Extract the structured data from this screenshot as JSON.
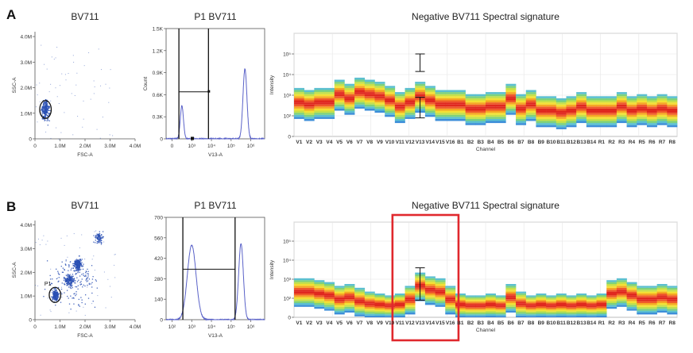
{
  "panel_labels": [
    "A",
    "B"
  ],
  "colors": {
    "histogram": "#5a62c8",
    "dots": "#2a50b4",
    "highlight": "#e0282d"
  },
  "chart_data": [
    {
      "id": "A-scatter",
      "type": "scatter",
      "title": "BV711",
      "xlabel": "FSC-A",
      "ylabel": "SSC-A",
      "xticks": [
        "0",
        "1.0M",
        "2.0M",
        "3.0M",
        "4.0M"
      ],
      "yticks": [
        "0",
        "1.0M",
        "2.0M",
        "3.0M",
        "4.0M"
      ],
      "xlim": [
        0,
        4000000
      ],
      "ylim": [
        0,
        4200000
      ],
      "clusters": [
        {
          "cx": 400000,
          "cy": 1150000,
          "sx": 120000,
          "sy": 280000,
          "n": 260
        }
      ],
      "gate": {
        "label": "",
        "cx": 420000,
        "cy": 1150000,
        "rx": 230000,
        "ry": 350000
      }
    },
    {
      "id": "A-hist",
      "type": "line",
      "title": "P1 BV711",
      "xlabel": "V13-A",
      "ylabel": "Count",
      "xticks": [
        "0",
        "10³",
        "10⁴",
        "10⁵",
        "10⁶"
      ],
      "yticks": [
        "0",
        "0.3K",
        "0.6K",
        "0.9K",
        "1.2K",
        "1.5K"
      ],
      "ylim": [
        0,
        1500
      ],
      "peaks": [
        {
          "x": 0.3,
          "count": 450,
          "width": 0.08
        },
        {
          "x": 3.5,
          "count": 950,
          "width": 0.1
        }
      ],
      "gate_marker_count": 640
    },
    {
      "id": "A-spectral",
      "type": "heatmap",
      "title": "Negative BV711 Spectral signature",
      "xlabel": "Channel",
      "ylabel": "Intensity",
      "yticks": [
        "0",
        "10²",
        "10³",
        "10⁴",
        "10⁵"
      ],
      "channels": [
        "V1",
        "V2",
        "V3",
        "V4",
        "V5",
        "V6",
        "V7",
        "V8",
        "V9",
        "V10",
        "V11",
        "V12",
        "V13",
        "V14",
        "V15",
        "V16",
        "B1",
        "B2",
        "B3",
        "B4",
        "B5",
        "B6",
        "B7",
        "B8",
        "B9",
        "B10",
        "B11",
        "B12",
        "B13",
        "B14",
        "R1",
        "R2",
        "R3",
        "R4",
        "R5",
        "R6",
        "R7",
        "R8"
      ],
      "medians": [
        1.6,
        1.5,
        1.6,
        1.6,
        2.0,
        1.8,
        2.1,
        2.0,
        1.9,
        1.7,
        1.4,
        1.6,
        1.9,
        1.7,
        1.5,
        1.5,
        1.5,
        1.3,
        1.3,
        1.4,
        1.4,
        1.8,
        1.3,
        1.5,
        1.2,
        1.2,
        1.1,
        1.2,
        1.4,
        1.2,
        1.2,
        1.2,
        1.4,
        1.2,
        1.3,
        1.2,
        1.3,
        1.2
      ],
      "error_bars": [
        {
          "channel": "V13",
          "low": 3.15,
          "high": 4.0
        },
        {
          "channel": "V13",
          "low": 0.9,
          "high": 1.9
        }
      ]
    },
    {
      "id": "B-scatter",
      "type": "scatter",
      "title": "BV711",
      "xlabel": "FSC-A",
      "ylabel": "SSC-A",
      "xticks": [
        "0",
        "1.0M",
        "2.0M",
        "3.0M",
        "4.0M"
      ],
      "yticks": [
        "0",
        "1.0M",
        "2.0M",
        "3.0M",
        "4.0M"
      ],
      "xlim": [
        0,
        4000000
      ],
      "ylim": [
        0,
        4200000
      ],
      "clusters": [
        {
          "cx": 800000,
          "cy": 1050000,
          "sx": 100000,
          "sy": 180000,
          "n": 220
        },
        {
          "cx": 1350000,
          "cy": 1700000,
          "sx": 160000,
          "sy": 200000,
          "n": 160
        },
        {
          "cx": 1700000,
          "cy": 2350000,
          "sx": 140000,
          "sy": 200000,
          "n": 200
        },
        {
          "cx": 2550000,
          "cy": 3500000,
          "sx": 150000,
          "sy": 180000,
          "n": 90
        },
        {
          "cx": 1500000,
          "cy": 1700000,
          "sx": 800000,
          "sy": 900000,
          "n": 180
        }
      ],
      "gate": {
        "label": "P1",
        "cx": 800000,
        "cy": 1050000,
        "rx": 230000,
        "ry": 320000
      }
    },
    {
      "id": "B-hist",
      "type": "line",
      "title": "P1 BV711",
      "xlabel": "V13-A",
      "ylabel": "",
      "xticks": [
        "10²",
        "10³",
        "10⁴",
        "10⁵",
        "10⁶"
      ],
      "yticks": [
        "0",
        "140",
        "280",
        "420",
        "560",
        "700"
      ],
      "ylim": [
        0,
        700
      ],
      "peaks": [
        {
          "x": 0.8,
          "count": 510,
          "width": 0.22
        },
        {
          "x": 3.3,
          "count": 520,
          "width": 0.12
        }
      ],
      "gate_marker_count": 345
    },
    {
      "id": "B-spectral",
      "type": "heatmap",
      "title": "Negative BV711 Spectral signature",
      "xlabel": "Channel",
      "ylabel": "Intensity",
      "yticks": [
        "0",
        "10²",
        "10³",
        "10⁴",
        "10⁵"
      ],
      "channels": [
        "V1",
        "V2",
        "V3",
        "V4",
        "V5",
        "V6",
        "V7",
        "V8",
        "V9",
        "V10",
        "V11",
        "V12",
        "V13",
        "V14",
        "V15",
        "V16",
        "B1",
        "B2",
        "B3",
        "B4",
        "B5",
        "B6",
        "B7",
        "B8",
        "B9",
        "B10",
        "B11",
        "B12",
        "B13",
        "B14",
        "R1",
        "R2",
        "R3",
        "R4",
        "R5",
        "R6",
        "R7",
        "R8"
      ],
      "medians": [
        1.3,
        1.3,
        1.2,
        1.1,
        0.9,
        1.0,
        0.8,
        0.6,
        0.5,
        0.4,
        0.5,
        0.9,
        1.6,
        1.4,
        1.3,
        0.9,
        0.5,
        0.4,
        0.4,
        0.5,
        0.4,
        1.0,
        0.6,
        0.4,
        0.5,
        0.4,
        0.5,
        0.4,
        0.5,
        0.4,
        0.5,
        1.2,
        1.3,
        1.1,
        0.9,
        0.9,
        1.0,
        0.9
      ],
      "error_bars": [
        {
          "channel": "V13",
          "low": 0.9,
          "high": 2.6
        }
      ],
      "highlight": [
        "V11",
        "V16"
      ]
    }
  ]
}
